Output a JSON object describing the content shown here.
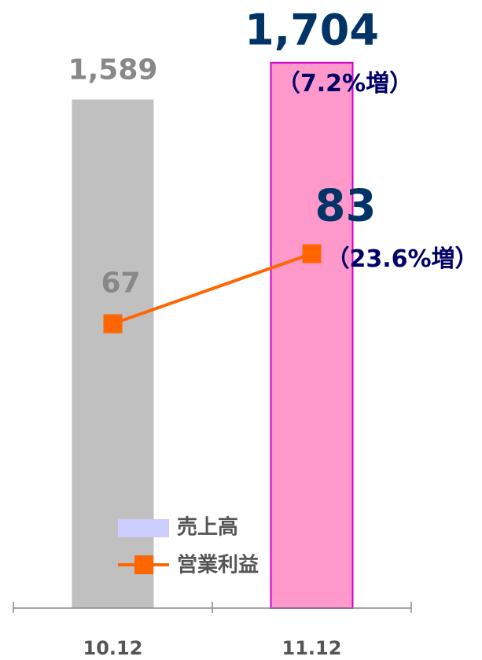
{
  "chart_data": {
    "type": "bar_line",
    "categories": [
      "10.12",
      "11.12"
    ],
    "series": [
      {
        "name": "売上高",
        "type": "bar",
        "color": "#ccccff",
        "bar_colors": [
          "#c0c0c0",
          "#ff99cc"
        ],
        "values": [
          1589,
          1704
        ],
        "value_labels": [
          "1,589",
          "1,704"
        ],
        "change_labels": [
          null,
          "（7.2%増）"
        ]
      },
      {
        "name": "営業利益",
        "type": "line",
        "axis": "y2",
        "color": "#ff6600",
        "values": [
          67,
          83
        ],
        "change_labels": [
          null,
          "（23.6%増）"
        ]
      }
    ],
    "ylim": [
      0,
      1900
    ],
    "y2lim": [
      2,
      141
    ]
  }
}
